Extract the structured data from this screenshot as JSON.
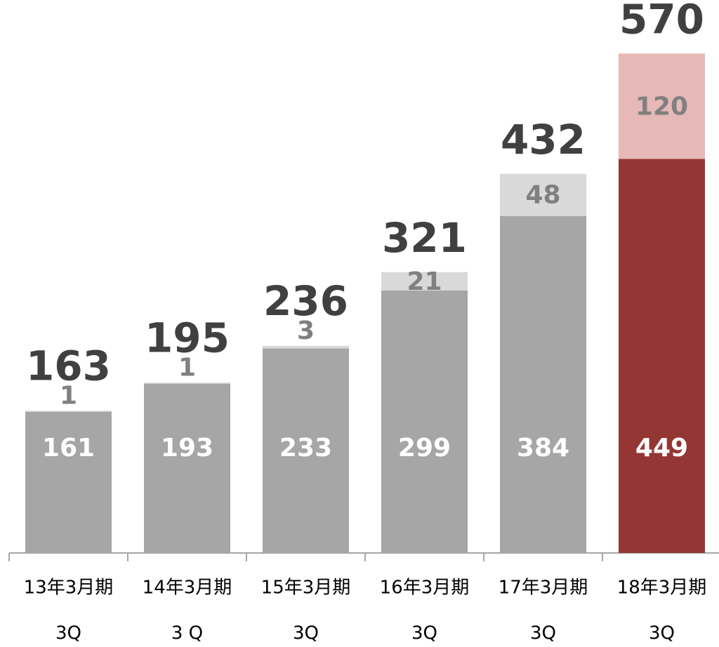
{
  "chart_data": {
    "type": "stacked-bar",
    "categories": [
      [
        "13年3月期",
        "3Q"
      ],
      [
        "14年3月期",
        "3 Q"
      ],
      [
        "15年3月期",
        "3Q"
      ],
      [
        "16年3月期",
        "3Q"
      ],
      [
        "17年3月期",
        "3Q"
      ],
      [
        "18年3月期",
        "3Q"
      ]
    ],
    "series": [
      {
        "colors": [
          "#a6a6a6",
          "#a6a6a6",
          "#a6a6a6",
          "#a6a6a6",
          "#a6a6a6",
          "#943634"
        ],
        "label_color": "#ffffff",
        "values": [
          161,
          193,
          233,
          299,
          384,
          449
        ]
      },
      {
        "colors": [
          "#d9d9d9",
          "#d9d9d9",
          "#d9d9d9",
          "#d9d9d9",
          "#d9d9d9",
          "#e6b8b7"
        ],
        "label_color": "#808080",
        "values": [
          1,
          1,
          3,
          21,
          48,
          120
        ]
      }
    ],
    "totals": [
      163,
      195,
      236,
      321,
      432,
      570
    ],
    "ylim": [
      0,
      630
    ]
  }
}
